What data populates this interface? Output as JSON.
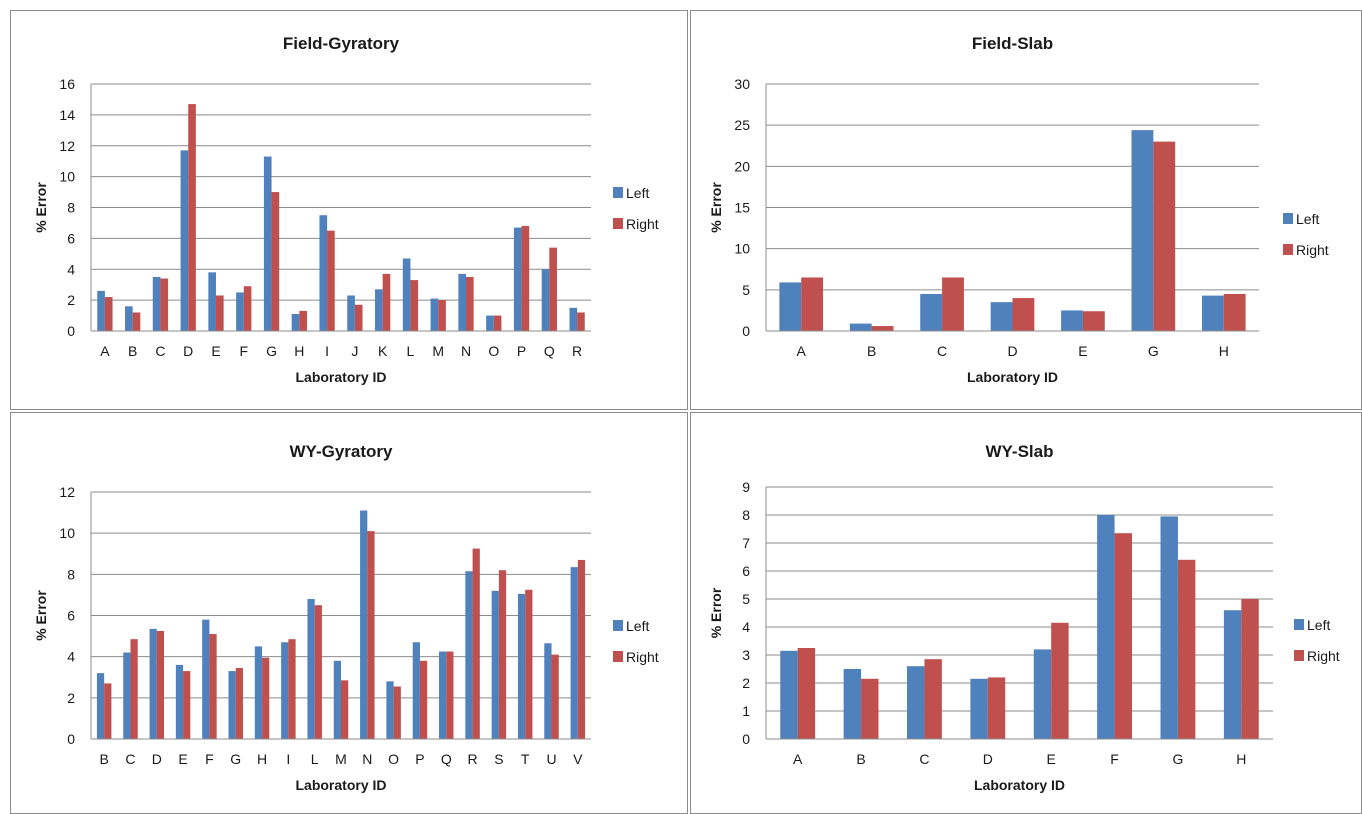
{
  "colors": {
    "left": "#4f81bd",
    "right": "#c0504d",
    "grid": "#8c8c8c"
  },
  "chart_data": [
    {
      "type": "bar",
      "title": "Field-Gyratory",
      "xlabel": "Laboratory ID",
      "ylabel": "% Error",
      "ylim": [
        0,
        16
      ],
      "yticks": [
        "0",
        "2",
        "4",
        "6",
        "8",
        "10",
        "12",
        "14",
        "16"
      ],
      "grid": true,
      "legend": "right",
      "categories": [
        "A",
        "B",
        "C",
        "D",
        "E",
        "F",
        "G",
        "H",
        "I",
        "J",
        "K",
        "L",
        "M",
        "N",
        "O",
        "P",
        "Q",
        "R"
      ],
      "series": [
        {
          "name": "Left",
          "values": [
            2.6,
            1.6,
            3.5,
            11.7,
            3.8,
            2.5,
            11.3,
            1.1,
            7.5,
            2.3,
            2.7,
            4.7,
            2.1,
            3.7,
            1.0,
            6.7,
            4.0,
            1.5
          ]
        },
        {
          "name": "Right",
          "values": [
            2.2,
            1.2,
            3.4,
            14.7,
            2.3,
            2.9,
            9.0,
            1.3,
            6.5,
            1.7,
            3.7,
            3.3,
            2.0,
            3.5,
            1.0,
            6.8,
            5.4,
            1.2
          ]
        }
      ]
    },
    {
      "type": "bar",
      "title": "Field-Slab",
      "xlabel": "Laboratory ID",
      "ylabel": "% Error",
      "ylim": [
        0,
        30
      ],
      "yticks": [
        "0",
        "5",
        "10",
        "15",
        "20",
        "25",
        "30"
      ],
      "grid": true,
      "legend": "right",
      "categories": [
        "A",
        "B",
        "C",
        "D",
        "E",
        "G",
        "H"
      ],
      "series": [
        {
          "name": "Left",
          "values": [
            5.9,
            0.9,
            4.5,
            3.5,
            2.5,
            24.4,
            4.3
          ]
        },
        {
          "name": "Right",
          "values": [
            6.5,
            0.6,
            6.5,
            4.0,
            2.4,
            23.0,
            4.5
          ]
        }
      ]
    },
    {
      "type": "bar",
      "title": "WY-Gyratory",
      "xlabel": "Laboratory ID",
      "ylabel": "% Error",
      "ylim": [
        0,
        12
      ],
      "yticks": [
        "0",
        "2",
        "4",
        "6",
        "8",
        "10",
        "12"
      ],
      "grid": true,
      "legend": "right",
      "categories": [
        "B",
        "C",
        "D",
        "E",
        "F",
        "G",
        "H",
        "I",
        "L",
        "M",
        "N",
        "O",
        "P",
        "Q",
        "R",
        "S",
        "T",
        "U",
        "V"
      ],
      "series": [
        {
          "name": "Left",
          "values": [
            3.2,
            4.2,
            5.35,
            3.6,
            5.8,
            3.3,
            4.5,
            4.7,
            6.8,
            3.8,
            11.1,
            2.8,
            4.7,
            4.25,
            8.15,
            7.2,
            7.05,
            4.65,
            8.35
          ]
        },
        {
          "name": "Right",
          "values": [
            2.7,
            4.85,
            5.25,
            3.3,
            5.1,
            3.45,
            3.95,
            4.85,
            6.5,
            2.85,
            10.1,
            2.55,
            3.8,
            4.25,
            9.25,
            8.2,
            7.25,
            4.1,
            8.7
          ]
        }
      ]
    },
    {
      "type": "bar",
      "title": "WY-Slab",
      "xlabel": "Laboratory ID",
      "ylabel": "% Error",
      "ylim": [
        0,
        9
      ],
      "yticks": [
        "0",
        "1",
        "2",
        "3",
        "4",
        "5",
        "6",
        "7",
        "8",
        "9"
      ],
      "grid": true,
      "legend": "right",
      "categories": [
        "A",
        "B",
        "C",
        "D",
        "E",
        "F",
        "G",
        "H"
      ],
      "series": [
        {
          "name": "Left",
          "values": [
            3.15,
            2.5,
            2.6,
            2.15,
            3.2,
            8.0,
            7.95,
            4.6
          ]
        },
        {
          "name": "Right",
          "values": [
            3.25,
            2.15,
            2.85,
            2.2,
            4.15,
            7.35,
            6.4,
            5.0
          ]
        }
      ]
    }
  ]
}
